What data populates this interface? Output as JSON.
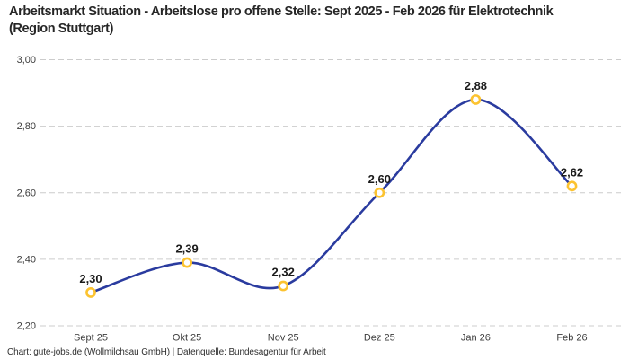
{
  "header": {
    "title": "Arbeitsmarkt Situation - Arbeitslose pro offene Stelle: Sept 2025 - Feb 2026 für Elektrotechnik (Region Stuttgart)"
  },
  "footer": {
    "credit": "Chart: gute-jobs.de (Wollmilchsau GmbH) | Datenquelle: Bundesagentur für Arbeit"
  },
  "chart_data": {
    "type": "line",
    "title": "Arbeitsmarkt Situation - Arbeitslose pro offene Stelle: Sept 2025 - Feb 2026 für Elektrotechnik (Region Stuttgart)",
    "categories": [
      "Sept 25",
      "Okt 25",
      "Nov 25",
      "Dez 25",
      "Jan 26",
      "Feb 26"
    ],
    "values": [
      2.3,
      2.39,
      2.32,
      2.6,
      2.88,
      2.62
    ],
    "point_labels": [
      "2,30",
      "2,39",
      "2,32",
      "2,60",
      "2,88",
      "2,62"
    ],
    "xlabel": "",
    "ylabel": "",
    "ylim": [
      2.2,
      3.0
    ],
    "yticks": [
      2.2,
      2.4,
      2.6,
      2.8,
      3.0
    ],
    "ytick_labels": [
      "2,20",
      "2,40",
      "2,60",
      "2,80",
      "3,00"
    ],
    "grid": "horizontal-dashed",
    "legend_position": "none",
    "line_style": "smooth-spline",
    "colors": {
      "line": "#2a3b9f",
      "marker_ring": "#fcc330",
      "marker_fill": "#ffffff",
      "gridline": "#cccccc",
      "tick_label": "#3c3c3c",
      "point_label": "#1a1a1a",
      "title": "#262626",
      "background": "#ffffff"
    }
  }
}
